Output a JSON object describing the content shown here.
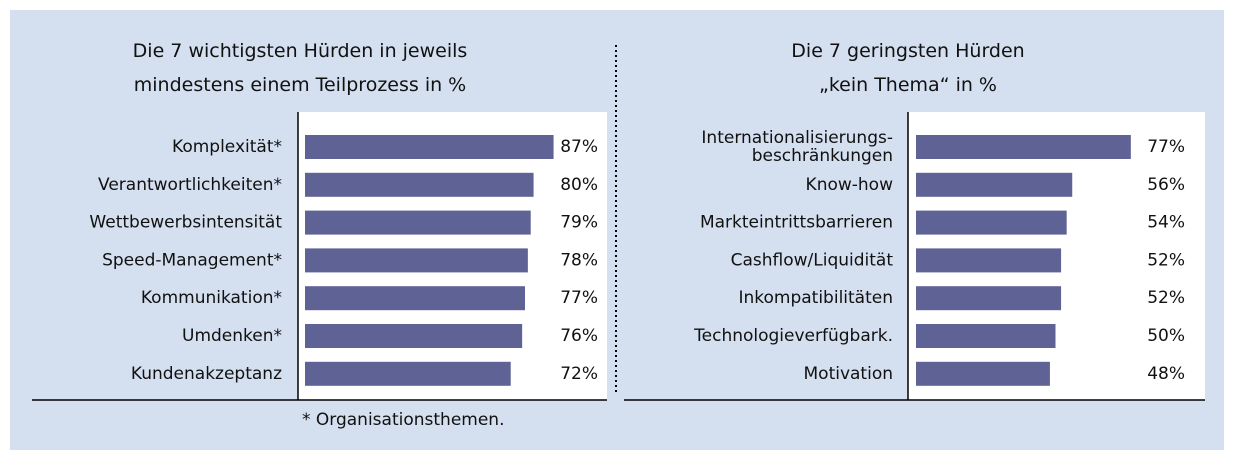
{
  "chart_data": [
    {
      "type": "bar",
      "orientation": "horizontal",
      "title": "Die 7 wichtigsten Hürden in jeweils\nmindestens einem Teilprozess in %",
      "categories": [
        "Komplexität*",
        "Verantwortlichkeiten*",
        "Wettbewerbsintensität",
        "Speed-Management*",
        "Kommunikation*",
        "Umdenken*",
        "Kundenakzeptanz"
      ],
      "values": [
        87,
        80,
        79,
        78,
        77,
        76,
        72
      ],
      "value_labels": [
        "87%",
        "80%",
        "79%",
        "78%",
        "77%",
        "76%",
        "72%"
      ],
      "color": "#5f6294",
      "xlim": [
        0,
        105
      ],
      "note": "* Organisationsthemen."
    },
    {
      "type": "bar",
      "orientation": "horizontal",
      "title": "Die 7 geringsten Hürden\n„kein Thema“ in %",
      "categories": [
        "Internationalisierungs-\nbeschränkungen",
        "Know-how",
        "Markteintrittsbarrieren",
        "Cashflow/Liquidität",
        "Inkompatibilitäten",
        "Technologieverfügbark.",
        "Motivation"
      ],
      "values": [
        77,
        56,
        54,
        52,
        52,
        50,
        48
      ],
      "value_labels": [
        "77%",
        "56%",
        "54%",
        "52%",
        "52%",
        "50%",
        "48%"
      ],
      "color": "#5f6294",
      "xlim": [
        0,
        100
      ]
    }
  ]
}
